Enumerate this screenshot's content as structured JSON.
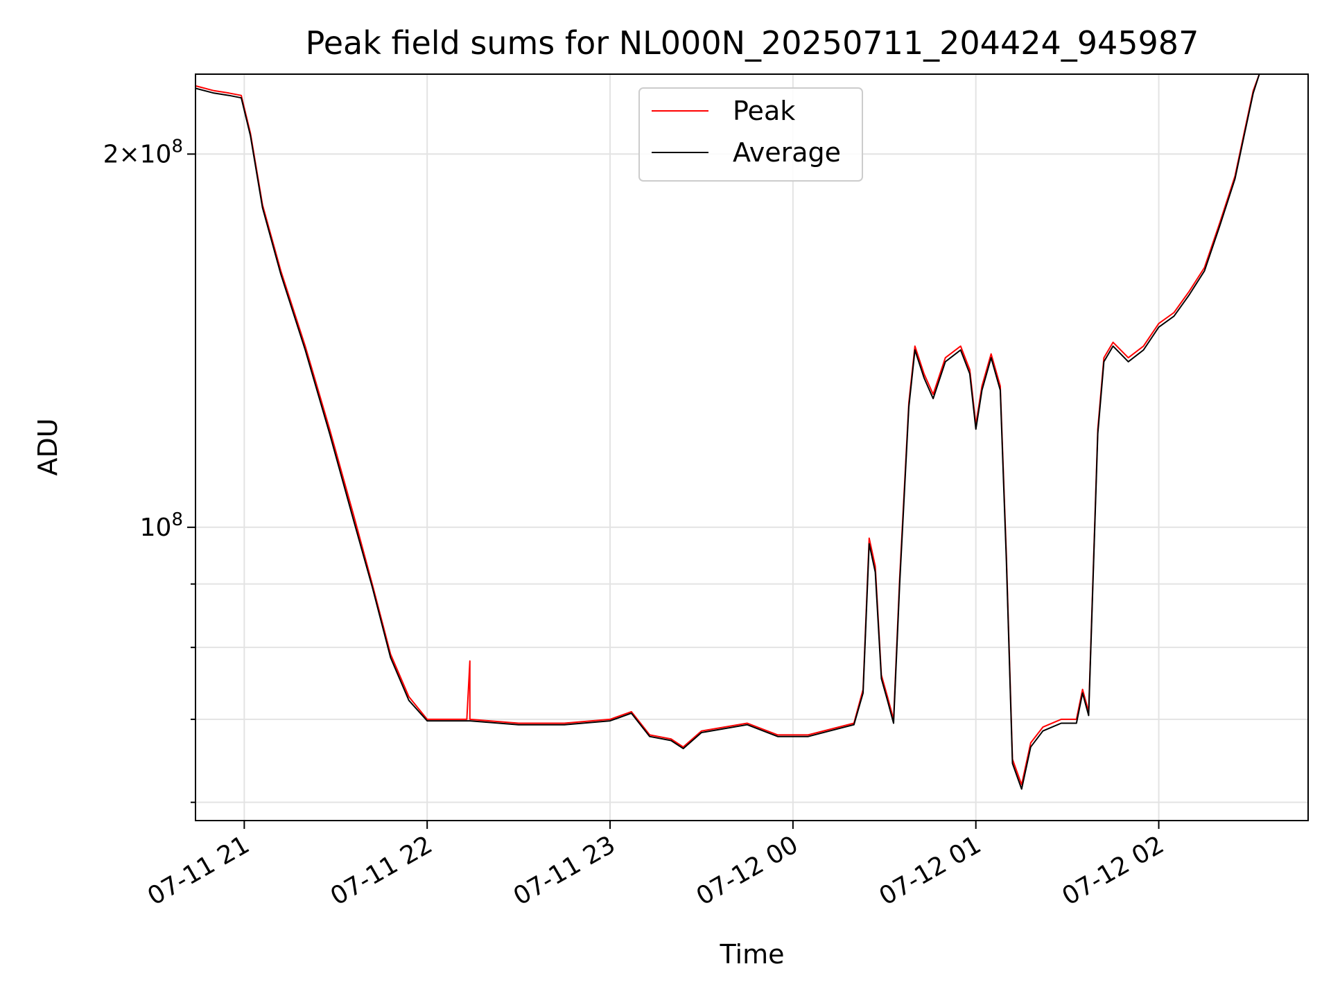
{
  "chart_data": {
    "type": "line",
    "title": "Peak field sums for NL000N_20250711_204424_945987",
    "xlabel": "Time",
    "ylabel": "ADU",
    "x_tick_labels": [
      "07-11 21",
      "07-11 22",
      "07-11 23",
      "07-12 00",
      "07-12 01",
      "07-12 02"
    ],
    "x_tick_values": [
      "2025-07-11T21:00",
      "2025-07-11T22:00",
      "2025-07-11T23:00",
      "2025-07-12T00:00",
      "2025-07-12T01:00",
      "2025-07-12T02:00"
    ],
    "xlim": [
      "2025-07-11T20:44",
      "2025-07-12T02:49"
    ],
    "y_scale": "log",
    "ylim": [
      58000000,
      232000000
    ],
    "y_major_ticks": [
      {
        "value": 100000000,
        "mantissa": "",
        "base": "10",
        "exp": "8"
      },
      {
        "value": 200000000,
        "mantissa": "2×",
        "base": "10",
        "exp": "8"
      }
    ],
    "y_minor_ticks": [
      60000000,
      70000000,
      80000000,
      90000000
    ],
    "grid": true,
    "legend": {
      "placement": "top-center"
    },
    "series": [
      {
        "name": "Peak",
        "color": "#ff0000",
        "points": [
          [
            "2025-07-11T20:44",
            227000000
          ],
          [
            "2025-07-11T20:50",
            225000000
          ],
          [
            "2025-07-11T20:55",
            224000000
          ],
          [
            "2025-07-11T20:59",
            223000000
          ],
          [
            "2025-07-11T21:02",
            208000000
          ],
          [
            "2025-07-11T21:06",
            182000000
          ],
          [
            "2025-07-11T21:12",
            161000000
          ],
          [
            "2025-07-11T21:20",
            140000000
          ],
          [
            "2025-07-11T21:28",
            120000000
          ],
          [
            "2025-07-11T21:36",
            102000000
          ],
          [
            "2025-07-11T21:42",
            90000000
          ],
          [
            "2025-07-11T21:48",
            79000000
          ],
          [
            "2025-07-11T21:54",
            73000000
          ],
          [
            "2025-07-11T22:00",
            70000000
          ],
          [
            "2025-07-11T22:10",
            70000000
          ],
          [
            "2025-07-11T22:13",
            70000000
          ],
          [
            "2025-07-11T22:14",
            78000000
          ],
          [
            "2025-07-11T22:14",
            70000000
          ],
          [
            "2025-07-11T22:30",
            69500000
          ],
          [
            "2025-07-11T22:45",
            69500000
          ],
          [
            "2025-07-11T23:00",
            70000000
          ],
          [
            "2025-07-11T23:07",
            71000000
          ],
          [
            "2025-07-11T23:13",
            68000000
          ],
          [
            "2025-07-11T23:20",
            67500000
          ],
          [
            "2025-07-11T23:24",
            66500000
          ],
          [
            "2025-07-11T23:30",
            68500000
          ],
          [
            "2025-07-11T23:45",
            69500000
          ],
          [
            "2025-07-11T23:55",
            68000000
          ],
          [
            "2025-07-12T00:05",
            68000000
          ],
          [
            "2025-07-12T00:15",
            69000000
          ],
          [
            "2025-07-12T00:20",
            69500000
          ],
          [
            "2025-07-12T00:23",
            74000000
          ],
          [
            "2025-07-12T00:25",
            98000000
          ],
          [
            "2025-07-12T00:27",
            93000000
          ],
          [
            "2025-07-12T00:29",
            76000000
          ],
          [
            "2025-07-12T00:31",
            73000000
          ],
          [
            "2025-07-12T00:33",
            70000000
          ],
          [
            "2025-07-12T00:35",
            91000000
          ],
          [
            "2025-07-12T00:38",
            126000000
          ],
          [
            "2025-07-12T00:40",
            140000000
          ],
          [
            "2025-07-12T00:43",
            133000000
          ],
          [
            "2025-07-12T00:46",
            128000000
          ],
          [
            "2025-07-12T00:50",
            137000000
          ],
          [
            "2025-07-12T00:55",
            140000000
          ],
          [
            "2025-07-12T00:58",
            134000000
          ],
          [
            "2025-07-12T01:00",
            121000000
          ],
          [
            "2025-07-12T01:02",
            130000000
          ],
          [
            "2025-07-12T01:05",
            138000000
          ],
          [
            "2025-07-12T01:08",
            130000000
          ],
          [
            "2025-07-12T01:10",
            95000000
          ],
          [
            "2025-07-12T01:12",
            65000000
          ],
          [
            "2025-07-12T01:15",
            62000000
          ],
          [
            "2025-07-12T01:18",
            67000000
          ],
          [
            "2025-07-12T01:22",
            69000000
          ],
          [
            "2025-07-12T01:28",
            70000000
          ],
          [
            "2025-07-12T01:33",
            70000000
          ],
          [
            "2025-07-12T01:35",
            74000000
          ],
          [
            "2025-07-12T01:37",
            71000000
          ],
          [
            "2025-07-12T01:40",
            120000000
          ],
          [
            "2025-07-12T01:42",
            137000000
          ],
          [
            "2025-07-12T01:45",
            141000000
          ],
          [
            "2025-07-12T01:50",
            137000000
          ],
          [
            "2025-07-12T01:55",
            140000000
          ],
          [
            "2025-07-12T02:00",
            146000000
          ],
          [
            "2025-07-12T02:05",
            149000000
          ],
          [
            "2025-07-12T02:10",
            155000000
          ],
          [
            "2025-07-12T02:15",
            162000000
          ],
          [
            "2025-07-12T02:20",
            176000000
          ],
          [
            "2025-07-12T02:25",
            192000000
          ],
          [
            "2025-07-12T02:28",
            208000000
          ],
          [
            "2025-07-12T02:31",
            225000000
          ],
          [
            "2025-07-12T02:33",
            232000000
          ]
        ]
      },
      {
        "name": "Average",
        "color": "#000000",
        "points": [
          [
            "2025-07-11T20:44",
            226000000
          ],
          [
            "2025-07-11T20:50",
            224000000
          ],
          [
            "2025-07-11T20:55",
            223000000
          ],
          [
            "2025-07-11T20:59",
            222000000
          ],
          [
            "2025-07-11T21:02",
            207000000
          ],
          [
            "2025-07-11T21:06",
            181000000
          ],
          [
            "2025-07-11T21:12",
            160000000
          ],
          [
            "2025-07-11T21:20",
            139000000
          ],
          [
            "2025-07-11T21:28",
            119000000
          ],
          [
            "2025-07-11T21:36",
            101000000
          ],
          [
            "2025-07-11T21:42",
            89500000
          ],
          [
            "2025-07-11T21:48",
            78500000
          ],
          [
            "2025-07-11T21:54",
            72500000
          ],
          [
            "2025-07-11T22:00",
            69800000
          ],
          [
            "2025-07-11T22:10",
            69800000
          ],
          [
            "2025-07-11T22:14",
            69800000
          ],
          [
            "2025-07-11T22:30",
            69300000
          ],
          [
            "2025-07-11T22:45",
            69300000
          ],
          [
            "2025-07-11T23:00",
            69800000
          ],
          [
            "2025-07-11T23:07",
            70800000
          ],
          [
            "2025-07-11T23:13",
            67800000
          ],
          [
            "2025-07-11T23:20",
            67300000
          ],
          [
            "2025-07-11T23:24",
            66300000
          ],
          [
            "2025-07-11T23:30",
            68300000
          ],
          [
            "2025-07-11T23:45",
            69300000
          ],
          [
            "2025-07-11T23:55",
            67800000
          ],
          [
            "2025-07-12T00:05",
            67800000
          ],
          [
            "2025-07-12T00:15",
            68800000
          ],
          [
            "2025-07-12T00:20",
            69300000
          ],
          [
            "2025-07-12T00:23",
            73500000
          ],
          [
            "2025-07-12T00:25",
            97000000
          ],
          [
            "2025-07-12T00:27",
            92000000
          ],
          [
            "2025-07-12T00:29",
            75500000
          ],
          [
            "2025-07-12T00:31",
            72500000
          ],
          [
            "2025-07-12T00:33",
            69500000
          ],
          [
            "2025-07-12T00:35",
            90000000
          ],
          [
            "2025-07-12T00:38",
            125000000
          ],
          [
            "2025-07-12T00:40",
            139000000
          ],
          [
            "2025-07-12T00:43",
            132000000
          ],
          [
            "2025-07-12T00:46",
            127000000
          ],
          [
            "2025-07-12T00:50",
            136000000
          ],
          [
            "2025-07-12T00:55",
            139000000
          ],
          [
            "2025-07-12T00:58",
            133000000
          ],
          [
            "2025-07-12T01:00",
            120000000
          ],
          [
            "2025-07-12T01:02",
            129000000
          ],
          [
            "2025-07-12T01:05",
            137000000
          ],
          [
            "2025-07-12T01:08",
            129000000
          ],
          [
            "2025-07-12T01:10",
            94000000
          ],
          [
            "2025-07-12T01:12",
            64500000
          ],
          [
            "2025-07-12T01:15",
            61500000
          ],
          [
            "2025-07-12T01:18",
            66500000
          ],
          [
            "2025-07-12T01:22",
            68500000
          ],
          [
            "2025-07-12T01:28",
            69500000
          ],
          [
            "2025-07-12T01:33",
            69500000
          ],
          [
            "2025-07-12T01:35",
            73500000
          ],
          [
            "2025-07-12T01:37",
            70500000
          ],
          [
            "2025-07-12T01:40",
            119000000
          ],
          [
            "2025-07-12T01:42",
            136000000
          ],
          [
            "2025-07-12T01:45",
            140000000
          ],
          [
            "2025-07-12T01:50",
            136000000
          ],
          [
            "2025-07-12T01:55",
            139000000
          ],
          [
            "2025-07-12T02:00",
            145000000
          ],
          [
            "2025-07-12T02:05",
            148000000
          ],
          [
            "2025-07-12T02:10",
            154000000
          ],
          [
            "2025-07-12T02:15",
            161000000
          ],
          [
            "2025-07-12T02:20",
            175000000
          ],
          [
            "2025-07-12T02:25",
            191000000
          ],
          [
            "2025-07-12T02:28",
            207000000
          ],
          [
            "2025-07-12T02:31",
            224000000
          ],
          [
            "2025-07-12T02:33",
            232000000
          ]
        ]
      }
    ]
  }
}
